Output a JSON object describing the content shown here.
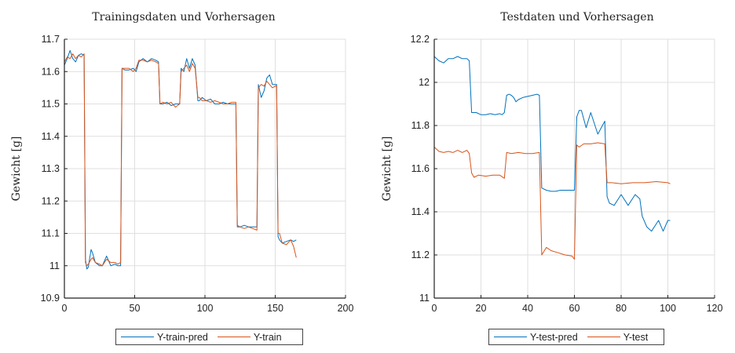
{
  "colors": {
    "blue": "#0072bd",
    "red": "#d95319",
    "grid": "#dfdfdf",
    "axis": "#222222"
  },
  "chart_data": [
    {
      "type": "line",
      "title": "Trainingsdaten und Vorhersagen",
      "xlabel": "",
      "ylabel": "Gewicht [g]",
      "xlim": [
        0,
        200
      ],
      "ylim": [
        10.9,
        11.7
      ],
      "xticks": [
        0,
        50,
        100,
        150,
        200
      ],
      "yticks": [
        10.9,
        11,
        11.1,
        11.2,
        11.3,
        11.4,
        11.5,
        11.6,
        11.7
      ],
      "grid": true,
      "legend_position": "bottom-outside",
      "series": [
        {
          "name": "Y-train-pred",
          "color": "#0072bd",
          "x": [
            0,
            2,
            4,
            6,
            8,
            10,
            12,
            14,
            15,
            16,
            17,
            19,
            20,
            22,
            25,
            27,
            30,
            33,
            36,
            38,
            40,
            41,
            43,
            46,
            49,
            51,
            53,
            56,
            59,
            62,
            65,
            67,
            68,
            70,
            73,
            76,
            79,
            82,
            83,
            85,
            87,
            89,
            91,
            93,
            95,
            96,
            98,
            101,
            104,
            107,
            110,
            113,
            116,
            119,
            122,
            123,
            125,
            128,
            131,
            134,
            137,
            138,
            140,
            142,
            144,
            146,
            148,
            150,
            151,
            152,
            153,
            155,
            158,
            161,
            163,
            165
          ],
          "y": [
            11.62,
            11.64,
            11.665,
            11.64,
            11.63,
            11.65,
            11.655,
            11.65,
            11.02,
            10.99,
            10.995,
            11.05,
            11.04,
            11.01,
            11.0,
            11.0,
            11.03,
            11.0,
            11.005,
            11.0,
            11.0,
            11.61,
            11.605,
            11.605,
            11.61,
            11.6,
            11.63,
            11.64,
            11.63,
            11.64,
            11.635,
            11.63,
            11.5,
            11.5,
            11.505,
            11.495,
            11.5,
            11.5,
            11.61,
            11.6,
            11.64,
            11.61,
            11.64,
            11.62,
            11.51,
            11.51,
            11.52,
            11.51,
            11.515,
            11.5,
            11.5,
            11.505,
            11.5,
            11.5,
            11.5,
            11.12,
            11.12,
            11.125,
            11.12,
            11.12,
            11.12,
            11.56,
            11.52,
            11.54,
            11.58,
            11.59,
            11.56,
            11.56,
            11.56,
            11.09,
            11.08,
            11.07,
            11.075,
            11.08,
            11.075,
            11.08
          ]
        },
        {
          "name": "Y-train",
          "color": "#d95319",
          "x": [
            0,
            2,
            4,
            6,
            8,
            10,
            12,
            14,
            15,
            16,
            17,
            19,
            20,
            22,
            25,
            27,
            30,
            33,
            36,
            38,
            40,
            41,
            43,
            46,
            49,
            51,
            53,
            56,
            59,
            62,
            65,
            67,
            68,
            70,
            73,
            76,
            79,
            82,
            83,
            85,
            87,
            89,
            91,
            93,
            95,
            96,
            98,
            101,
            104,
            107,
            110,
            113,
            116,
            119,
            122,
            123,
            125,
            128,
            131,
            134,
            137,
            138,
            140,
            142,
            144,
            146,
            148,
            150,
            151,
            152,
            153,
            155,
            158,
            161,
            163,
            165
          ],
          "y": [
            11.63,
            11.645,
            11.64,
            11.655,
            11.64,
            11.65,
            11.645,
            11.655,
            11.01,
            11.0,
            11.005,
            11.02,
            11.025,
            11.01,
            11.005,
            11.0,
            11.02,
            11.01,
            11.01,
            11.005,
            11.01,
            11.61,
            11.61,
            11.61,
            11.6,
            11.61,
            11.635,
            11.635,
            11.63,
            11.635,
            11.63,
            11.625,
            11.5,
            11.505,
            11.5,
            11.505,
            11.49,
            11.5,
            11.6,
            11.61,
            11.62,
            11.6,
            11.625,
            11.61,
            11.52,
            11.52,
            11.51,
            11.51,
            11.505,
            11.51,
            11.505,
            11.5,
            11.5,
            11.505,
            11.505,
            11.125,
            11.12,
            11.115,
            11.12,
            11.115,
            11.11,
            11.55,
            11.56,
            11.555,
            11.57,
            11.56,
            11.55,
            11.555,
            11.555,
            11.1,
            11.1,
            11.07,
            11.065,
            11.08,
            11.06,
            11.025
          ]
        }
      ]
    },
    {
      "type": "line",
      "title": "Testdaten und Vorhersagen",
      "xlabel": "",
      "ylabel": "Gewicht [g]",
      "xlim": [
        0,
        120
      ],
      "ylim": [
        11,
        12.2
      ],
      "xticks": [
        0,
        20,
        40,
        60,
        80,
        100,
        120
      ],
      "yticks": [
        11,
        11.2,
        11.4,
        11.6,
        11.8,
        12,
        12.2
      ],
      "grid": true,
      "legend_position": "bottom-outside",
      "series": [
        {
          "name": "Y-test-pred",
          "color": "#0072bd",
          "x": [
            0,
            2,
            4,
            6,
            8,
            10,
            12,
            14,
            15,
            16,
            18,
            20,
            22,
            24,
            26,
            28,
            29,
            30,
            31,
            32,
            33,
            34,
            35,
            36,
            38,
            40,
            42,
            44,
            45,
            46,
            48,
            50,
            52,
            54,
            56,
            58,
            60,
            61,
            62,
            63,
            65,
            67,
            70,
            72,
            73,
            74,
            75,
            77,
            80,
            83,
            86,
            88,
            89,
            91,
            93,
            96,
            98,
            100,
            101
          ],
          "y": [
            12.12,
            12.1,
            12.09,
            12.11,
            12.11,
            12.12,
            12.11,
            12.11,
            12.1,
            11.86,
            11.86,
            11.85,
            11.85,
            11.855,
            11.85,
            11.855,
            11.85,
            11.86,
            11.94,
            11.945,
            11.94,
            11.93,
            11.91,
            11.92,
            11.93,
            11.935,
            11.94,
            11.945,
            11.94,
            11.51,
            11.5,
            11.495,
            11.495,
            11.5,
            11.5,
            11.5,
            11.5,
            11.84,
            11.87,
            11.87,
            11.79,
            11.86,
            11.76,
            11.8,
            11.82,
            11.47,
            11.44,
            11.43,
            11.48,
            11.43,
            11.48,
            11.46,
            11.38,
            11.33,
            11.31,
            11.36,
            11.31,
            11.36,
            11.36
          ]
        },
        {
          "name": "Y-test",
          "color": "#d95319",
          "x": [
            0,
            2,
            4,
            6,
            8,
            10,
            12,
            14,
            15,
            16,
            17,
            19,
            22,
            25,
            28,
            30,
            31,
            33,
            36,
            39,
            42,
            45,
            46,
            48,
            50,
            53,
            56,
            59,
            60,
            61,
            62,
            64,
            67,
            70,
            73,
            74,
            76,
            80,
            85,
            90,
            95,
            100,
            101
          ],
          "y": [
            11.7,
            11.68,
            11.675,
            11.68,
            11.675,
            11.685,
            11.675,
            11.685,
            11.67,
            11.58,
            11.56,
            11.57,
            11.565,
            11.57,
            11.57,
            11.555,
            11.675,
            11.67,
            11.675,
            11.67,
            11.67,
            11.675,
            11.2,
            11.235,
            11.22,
            11.21,
            11.2,
            11.195,
            11.18,
            11.71,
            11.7,
            11.715,
            11.715,
            11.72,
            11.715,
            11.535,
            11.535,
            11.53,
            11.535,
            11.535,
            11.54,
            11.535,
            11.53
          ]
        }
      ]
    }
  ]
}
